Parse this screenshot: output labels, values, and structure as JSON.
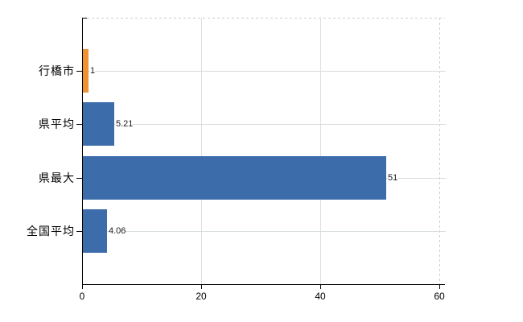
{
  "chart_data": {
    "type": "bar",
    "orientation": "horizontal",
    "title": "",
    "categories": [
      "行橋市",
      "県平均",
      "県最大",
      "全国平均"
    ],
    "values": [
      1,
      5.21,
      51,
      4.06
    ],
    "value_labels": [
      "1",
      "5.21",
      "51",
      "4.06"
    ],
    "bar_colors": [
      "#ee9233",
      "#3c6caa",
      "#3c6caa",
      "#3c6caa"
    ],
    "xlabel": "",
    "ylabel": "",
    "xlim": [
      0,
      60
    ],
    "x_ticks": [
      0,
      20,
      40,
      60
    ],
    "x_tick_labels": [
      "0",
      "20",
      "40",
      "60"
    ],
    "legend": "none",
    "grid": "vertical gridlines at x ticks; light horizontal line at each category; dashed top and right plot borders",
    "colors": {
      "bar_blue": "#3c6caa",
      "bar_orange": "#ee9233",
      "axis": "#000000",
      "x_gridline": "#dedede",
      "category_line": "#d7ddd7",
      "dashed_border": "#cccccc",
      "text": "#000000",
      "background": "#ffffff"
    }
  }
}
